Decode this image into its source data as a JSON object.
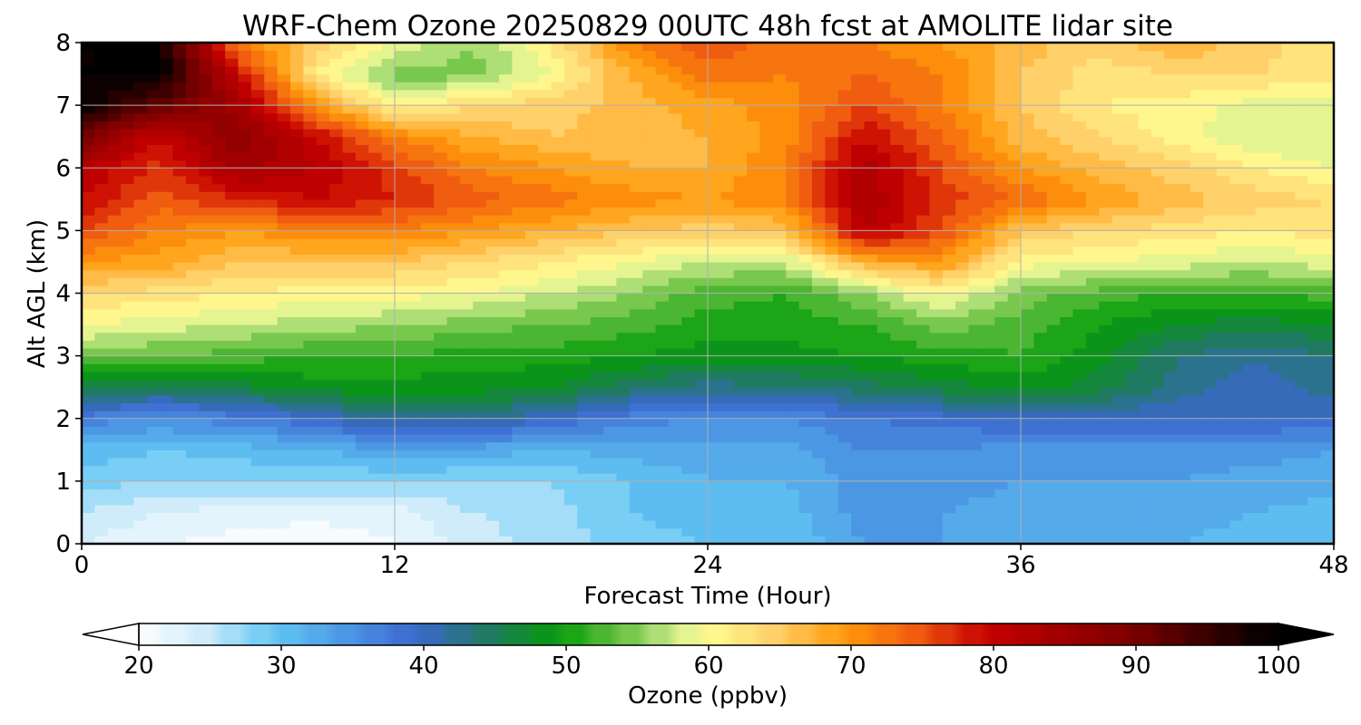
{
  "chart_data": {
    "type": "heatmap",
    "subtype": "filled-contour time-height cross section",
    "title": "WRF-Chem Ozone  20250829 00UTC 48h fcst at AMOLITE lidar site",
    "xlabel": "Forecast Time (Hour)",
    "ylabel": "Alt AGL (km)",
    "xlim": [
      0,
      48
    ],
    "ylim": [
      0,
      8
    ],
    "x_ticks": [
      "0",
      "12",
      "24",
      "36",
      "48"
    ],
    "y_ticks": [
      "0",
      "1",
      "2",
      "3",
      "4",
      "5",
      "6",
      "7",
      "8"
    ],
    "grid": true,
    "colorbar": {
      "label": "Ozone  (ppbv)",
      "min": 20,
      "max": 100,
      "extend": "both",
      "orientation": "horizontal",
      "ticks": [
        "20",
        "30",
        "40",
        "50",
        "60",
        "70",
        "80",
        "90",
        "100"
      ],
      "colormap": [
        [
          20,
          "#ffffff"
        ],
        [
          25,
          "#d0ecfb"
        ],
        [
          30,
          "#62c6f3"
        ],
        [
          35,
          "#4c97e4"
        ],
        [
          40,
          "#3c67cf"
        ],
        [
          45,
          "#207a62"
        ],
        [
          50,
          "#059c08"
        ],
        [
          55,
          "#79c84e"
        ],
        [
          58,
          "#c8e98a"
        ],
        [
          60,
          "#ffff95"
        ],
        [
          65,
          "#ffd16b"
        ],
        [
          70,
          "#ff9a0b"
        ],
        [
          75,
          "#f05c10"
        ],
        [
          80,
          "#c60000"
        ],
        [
          90,
          "#7d0000"
        ],
        [
          100,
          "#000000"
        ]
      ]
    },
    "x": [
      0,
      3,
      6,
      9,
      12,
      15,
      18,
      21,
      24,
      27,
      30,
      33,
      36,
      39,
      42,
      45,
      48
    ],
    "y": [
      0,
      0.5,
      1,
      1.5,
      2,
      2.5,
      3,
      3.5,
      4,
      4.5,
      5,
      5.5,
      6,
      6.5,
      7,
      7.5,
      8
    ],
    "z": [
      [
        24,
        22,
        21,
        20,
        22,
        25,
        27,
        29,
        30,
        30,
        34,
        34,
        33,
        33,
        32,
        31,
        31
      ],
      [
        26,
        24,
        23,
        23,
        23,
        26,
        27,
        30,
        31,
        31,
        35,
        34,
        33,
        34,
        33,
        32,
        31
      ],
      [
        29,
        28,
        28,
        28,
        28,
        28,
        28,
        30,
        32,
        32,
        35,
        35,
        34,
        34,
        34,
        33,
        33
      ],
      [
        31,
        30,
        31,
        32,
        34,
        33,
        32,
        33,
        33,
        33,
        36,
        36,
        35,
        35,
        35,
        35,
        34
      ],
      [
        37,
        36,
        37,
        40,
        43,
        43,
        40,
        37,
        36,
        36,
        38,
        39,
        40,
        40,
        40,
        40,
        40
      ],
      [
        47,
        45,
        47,
        49,
        49,
        49,
        48,
        45,
        43,
        44,
        45,
        47,
        49,
        47,
        43,
        41,
        43
      ],
      [
        55,
        54,
        53,
        52,
        52,
        51,
        51,
        50,
        49,
        49,
        50,
        51,
        52,
        49,
        44,
        42,
        44
      ],
      [
        60,
        59,
        58,
        57,
        56,
        55,
        54,
        53,
        51,
        51,
        52,
        55,
        53,
        50,
        48,
        47,
        48
      ],
      [
        64,
        63,
        62,
        61,
        61,
        60,
        58,
        56,
        53,
        52,
        56,
        61,
        55,
        53,
        52,
        52,
        53
      ],
      [
        70,
        69,
        66,
        66,
        66,
        64,
        62,
        60,
        58,
        58,
        68,
        70,
        61,
        60,
        59,
        58,
        59
      ],
      [
        76,
        72,
        70,
        72,
        72,
        70,
        68,
        66,
        65,
        66,
        82,
        76,
        66,
        64,
        63,
        62,
        63
      ],
      [
        80,
        75,
        78,
        80,
        78,
        75,
        73,
        71,
        70,
        72,
        84,
        77,
        74,
        70,
        67,
        65,
        64
      ],
      [
        82,
        77,
        85,
        82,
        77,
        72,
        70,
        68,
        68,
        72,
        83,
        76,
        70,
        67,
        65,
        62,
        60
      ],
      [
        90,
        80,
        88,
        80,
        72,
        68,
        66,
        67,
        68,
        71,
        80,
        74,
        67,
        64,
        61,
        58,
        58
      ],
      [
        100,
        92,
        85,
        70,
        61,
        64,
        65,
        67,
        69,
        71,
        76,
        72,
        66,
        62,
        61,
        59,
        59
      ],
      [
        100,
        100,
        80,
        62,
        55,
        55,
        60,
        68,
        73,
        72,
        74,
        72,
        66,
        63,
        64,
        64,
        63
      ],
      [
        100,
        100,
        72,
        65,
        60,
        56,
        62,
        72,
        76,
        72,
        72,
        70,
        67,
        65,
        68,
        65,
        62
      ]
    ]
  }
}
